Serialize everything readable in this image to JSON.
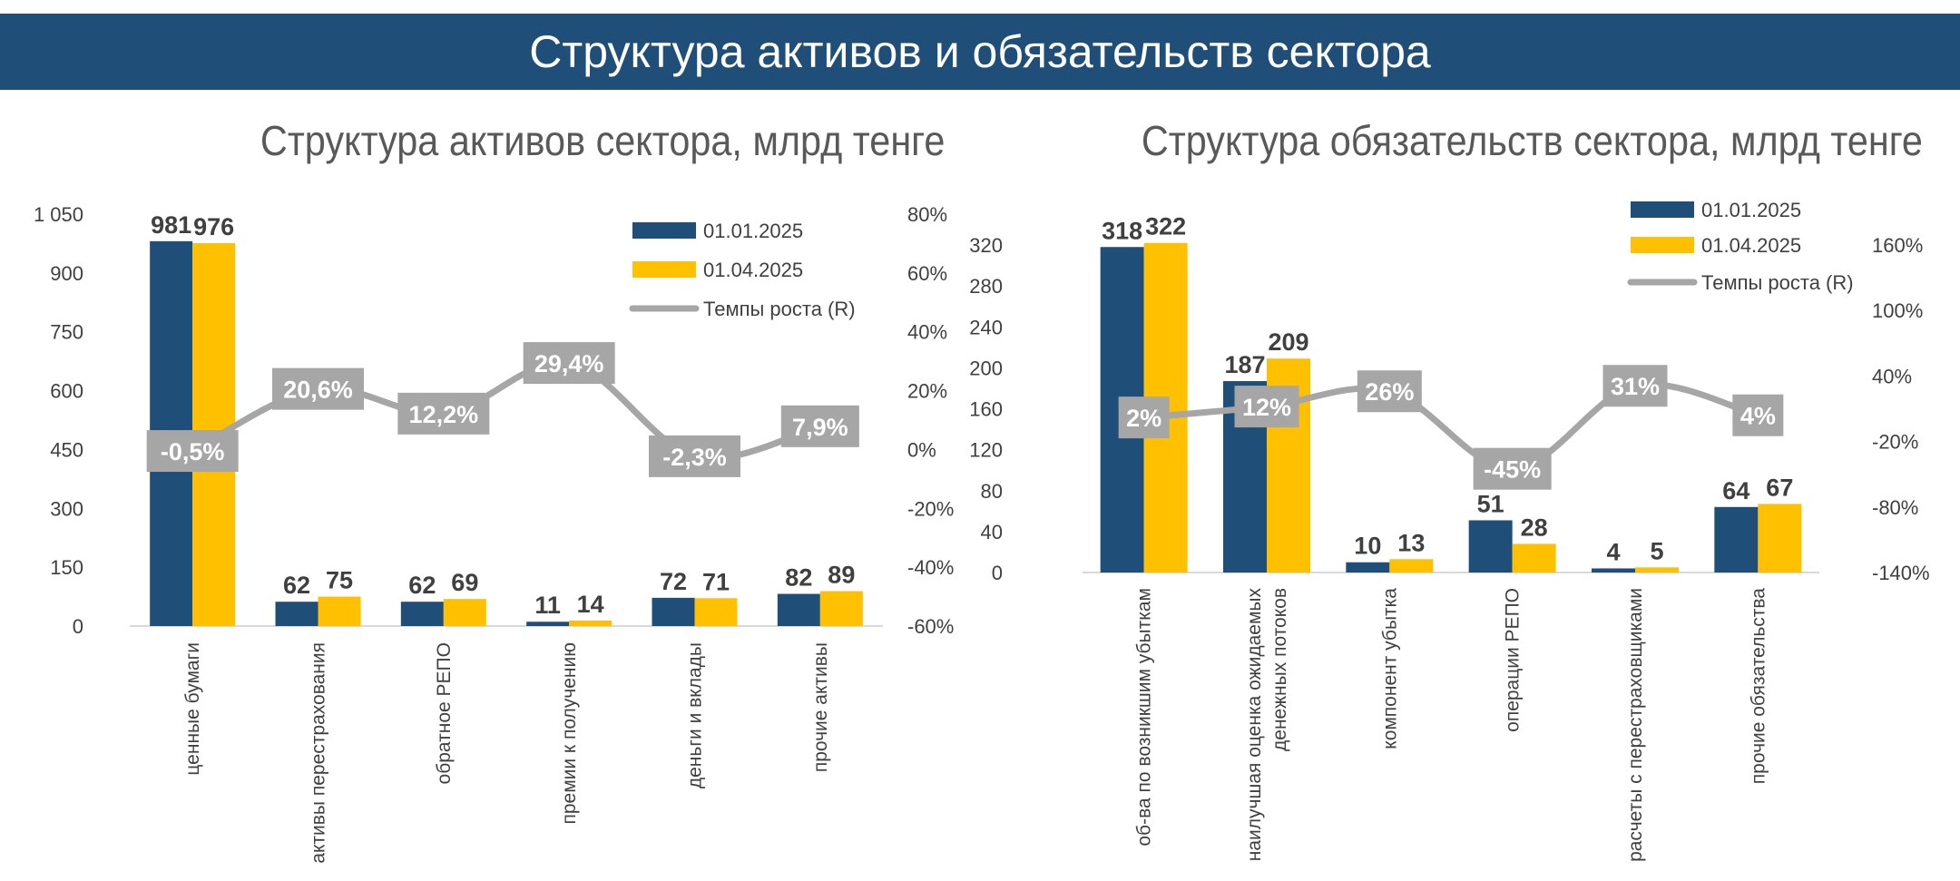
{
  "header": {
    "title": "Структура активов и обязательств сектора"
  },
  "colors": {
    "banner": "#1f4e79",
    "series1": "#1f4e79",
    "series2": "#ffc000",
    "growth": "#a6a6a6"
  },
  "chart_data": [
    {
      "type": "bar",
      "title": "Структура активов сектора, млрд тенге",
      "categories": [
        [
          "ценные бумаги"
        ],
        [
          "активы перестрахования"
        ],
        [
          "обратное РЕПО"
        ],
        [
          "премии к получению"
        ],
        [
          "деньги и вклады"
        ],
        [
          "прочие активы"
        ]
      ],
      "series": [
        {
          "name": "01.01.2025",
          "values": [
            981,
            62,
            62,
            11,
            72,
            82
          ],
          "labels": [
            "981",
            "62",
            "62",
            "11",
            "72",
            "82"
          ]
        },
        {
          "name": "01.04.2025",
          "values": [
            976,
            75,
            69,
            14,
            71,
            89
          ],
          "labels": [
            "976",
            "75",
            "69",
            "14",
            "71",
            "89"
          ]
        }
      ],
      "line": {
        "name": "Темпы роста (R)",
        "values": [
          -0.5,
          20.6,
          12.2,
          29.4,
          -2.3,
          7.9
        ],
        "labels": [
          "-0,5%",
          "20,6%",
          "12,2%",
          "29,4%",
          "-2,3%",
          "7,9%"
        ]
      },
      "y_left": {
        "min": 0,
        "max": 1050,
        "ticks": [
          "0",
          "150",
          "300",
          "450",
          "600",
          "750",
          "900",
          "1 050"
        ]
      },
      "y_right": {
        "min": -60,
        "max": 80,
        "ticks": [
          "-60%",
          "-40%",
          "-20%",
          "0%",
          "20%",
          "40%",
          "60%",
          "80%"
        ]
      },
      "legend": "top-right"
    },
    {
      "type": "bar",
      "title": "Структура обязательств сектора, млрд тенге",
      "categories": [
        [
          "об-ва по возникшим убыткам"
        ],
        [
          "наилучшая оценка ожидаемых",
          "денежных потоков"
        ],
        [
          "компонент убытка"
        ],
        [
          "операции РЕПО"
        ],
        [
          "расчеты с перестраховщиками"
        ],
        [
          "прочие обязательства"
        ]
      ],
      "series": [
        {
          "name": "01.01.2025",
          "values": [
            318,
            187,
            10,
            51,
            4,
            64
          ],
          "labels": [
            "318",
            "187",
            "10",
            "51",
            "4",
            "64"
          ]
        },
        {
          "name": "01.04.2025",
          "values": [
            322,
            209,
            13,
            28,
            5,
            67
          ],
          "labels": [
            "322",
            "209",
            "13",
            "28",
            "5",
            "67"
          ]
        }
      ],
      "line": {
        "name": "Темпы роста (R)",
        "values": [
          2,
          12,
          26,
          -45,
          31,
          4
        ],
        "labels": [
          "2%",
          "12%",
          "26%",
          "-45%",
          "31%",
          "4%"
        ]
      },
      "y_left": {
        "min": 0,
        "max": 320,
        "ticks": [
          "0",
          "40",
          "80",
          "120",
          "160",
          "200",
          "240",
          "280",
          "320"
        ]
      },
      "y_right": {
        "min": -140,
        "max": 160,
        "ticks": [
          "-140%",
          "-80%",
          "-20%",
          "40%",
          "100%",
          "160%"
        ]
      },
      "legend": "top-right"
    }
  ]
}
